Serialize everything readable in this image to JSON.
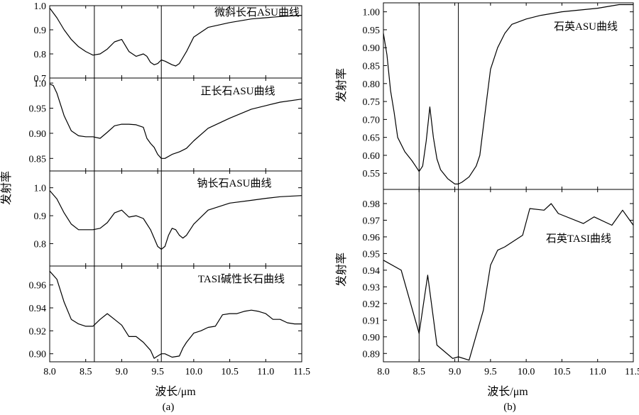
{
  "figure": {
    "panel_a_caption": "(a)",
    "panel_b_caption": "(b)",
    "xlabel": "波长/μm",
    "ylabel": "发射率"
  },
  "chart_data": [
    {
      "type": "line",
      "panel": "a",
      "label": "微斜长石ASU曲线",
      "xlim": [
        8.0,
        11.5
      ],
      "ylim": [
        0.7,
        1.0
      ],
      "x_ticks": [
        "8.0",
        "8.5",
        "9.0",
        "9.5",
        "10.0",
        "10.5",
        "11.0",
        "11.5"
      ],
      "y_ticks": [
        "0.7",
        "0.8",
        "0.9",
        "1.0"
      ],
      "marker_lines_x": [
        8.62,
        9.55
      ],
      "grid": false,
      "x": [
        8.0,
        8.1,
        8.2,
        8.3,
        8.4,
        8.5,
        8.6,
        8.7,
        8.8,
        8.9,
        9.0,
        9.1,
        9.2,
        9.3,
        9.35,
        9.4,
        9.45,
        9.5,
        9.55,
        9.6,
        9.7,
        9.75,
        9.8,
        9.9,
        10.0,
        10.2,
        10.5,
        10.8,
        11.0,
        11.2,
        11.5
      ],
      "y": [
        0.99,
        0.95,
        0.9,
        0.86,
        0.83,
        0.81,
        0.795,
        0.8,
        0.82,
        0.85,
        0.86,
        0.81,
        0.79,
        0.8,
        0.79,
        0.765,
        0.755,
        0.76,
        0.775,
        0.77,
        0.755,
        0.75,
        0.76,
        0.81,
        0.87,
        0.91,
        0.93,
        0.945,
        0.95,
        0.955,
        0.96
      ]
    },
    {
      "type": "line",
      "panel": "a",
      "label": "正长石ASU曲线",
      "xlim": [
        8.0,
        11.5
      ],
      "ylim": [
        0.825,
        1.01
      ],
      "y_ticks": [
        "0.85",
        "0.90",
        "0.95",
        "1.0"
      ],
      "marker_lines_x": [
        8.62,
        9.55
      ],
      "grid": false,
      "x": [
        8.0,
        8.05,
        8.1,
        8.2,
        8.3,
        8.4,
        8.5,
        8.6,
        8.7,
        8.8,
        8.9,
        9.0,
        9.1,
        9.2,
        9.3,
        9.35,
        9.4,
        9.45,
        9.5,
        9.55,
        9.6,
        9.7,
        9.8,
        9.9,
        10.0,
        10.2,
        10.5,
        10.8,
        11.0,
        11.2,
        11.5
      ],
      "y": [
        0.998,
        0.995,
        0.98,
        0.935,
        0.905,
        0.895,
        0.893,
        0.893,
        0.89,
        0.902,
        0.915,
        0.918,
        0.918,
        0.917,
        0.912,
        0.89,
        0.88,
        0.872,
        0.858,
        0.85,
        0.85,
        0.858,
        0.863,
        0.87,
        0.885,
        0.91,
        0.93,
        0.948,
        0.955,
        0.962,
        0.968
      ]
    },
    {
      "type": "line",
      "panel": "a",
      "label": "钠长石ASU曲线",
      "xlim": [
        8.0,
        11.5
      ],
      "ylim": [
        0.72,
        1.06
      ],
      "y_ticks": [
        "0.8",
        "0.9",
        "1.0"
      ],
      "marker_lines_x": [
        8.62,
        9.55
      ],
      "grid": false,
      "x": [
        8.0,
        8.1,
        8.2,
        8.3,
        8.4,
        8.5,
        8.6,
        8.7,
        8.8,
        8.9,
        9.0,
        9.1,
        9.2,
        9.3,
        9.4,
        9.45,
        9.5,
        9.55,
        9.6,
        9.65,
        9.7,
        9.75,
        9.8,
        9.85,
        9.9,
        10.0,
        10.2,
        10.5,
        10.8,
        11.0,
        11.2,
        11.5
      ],
      "y": [
        0.99,
        0.96,
        0.91,
        0.87,
        0.85,
        0.85,
        0.85,
        0.855,
        0.875,
        0.91,
        0.92,
        0.895,
        0.9,
        0.89,
        0.85,
        0.82,
        0.79,
        0.78,
        0.79,
        0.83,
        0.855,
        0.85,
        0.83,
        0.82,
        0.83,
        0.87,
        0.92,
        0.945,
        0.955,
        0.962,
        0.968,
        0.972
      ]
    },
    {
      "type": "line",
      "panel": "a",
      "label": "TASI碱性长石曲线",
      "xlim": [
        8.0,
        11.5
      ],
      "ylim": [
        0.893,
        0.9765
      ],
      "y_ticks": [
        "0.90",
        "0.92",
        "0.94",
        "0.96"
      ],
      "marker_lines_x": [
        8.62,
        9.55
      ],
      "grid": false,
      "x": [
        8.0,
        8.1,
        8.2,
        8.3,
        8.4,
        8.5,
        8.6,
        8.7,
        8.8,
        8.9,
        9.0,
        9.1,
        9.2,
        9.3,
        9.4,
        9.45,
        9.5,
        9.55,
        9.6,
        9.7,
        9.8,
        9.85,
        9.9,
        10.0,
        10.1,
        10.2,
        10.3,
        10.4,
        10.5,
        10.6,
        10.7,
        10.8,
        10.9,
        11.0,
        11.1,
        11.2,
        11.3,
        11.4,
        11.5
      ],
      "y": [
        0.972,
        0.965,
        0.945,
        0.93,
        0.926,
        0.924,
        0.924,
        0.93,
        0.935,
        0.93,
        0.925,
        0.915,
        0.915,
        0.91,
        0.903,
        0.896,
        0.898,
        0.9,
        0.9,
        0.897,
        0.898,
        0.905,
        0.91,
        0.918,
        0.92,
        0.923,
        0.924,
        0.934,
        0.935,
        0.935,
        0.937,
        0.938,
        0.937,
        0.935,
        0.93,
        0.93,
        0.927,
        0.926,
        0.926
      ]
    },
    {
      "type": "line",
      "panel": "b",
      "label": "石英ASU曲线",
      "xlim": [
        8.0,
        11.5
      ],
      "ylim": [
        0.505,
        1.025
      ],
      "y_ticks": [
        "0.55",
        "0.60",
        "0.65",
        "0.70",
        "0.75",
        "0.80",
        "0.85",
        "0.90",
        "0.95",
        "1.00"
      ],
      "marker_lines_x": [
        8.5,
        9.05
      ],
      "grid": false,
      "x": [
        8.0,
        8.05,
        8.1,
        8.15,
        8.2,
        8.3,
        8.4,
        8.45,
        8.5,
        8.55,
        8.6,
        8.65,
        8.7,
        8.75,
        8.8,
        8.9,
        9.0,
        9.05,
        9.1,
        9.2,
        9.3,
        9.35,
        9.4,
        9.45,
        9.5,
        9.6,
        9.7,
        9.8,
        10.0,
        10.2,
        10.5,
        11.0,
        11.3,
        11.5
      ],
      "y": [
        0.94,
        0.88,
        0.78,
        0.72,
        0.65,
        0.61,
        0.585,
        0.57,
        0.555,
        0.57,
        0.64,
        0.735,
        0.65,
        0.59,
        0.56,
        0.535,
        0.52,
        0.52,
        0.525,
        0.54,
        0.57,
        0.6,
        0.68,
        0.76,
        0.84,
        0.9,
        0.94,
        0.965,
        0.98,
        0.99,
        1.0,
        1.01,
        1.02,
        1.02
      ]
    },
    {
      "type": "line",
      "panel": "b",
      "label": "石英TASI曲线",
      "xlim": [
        8.0,
        11.5
      ],
      "ylim": [
        0.885,
        0.9885
      ],
      "y_ticks": [
        "0.89",
        "0.90",
        "0.91",
        "0.92",
        "0.93",
        "0.94",
        "0.95",
        "0.96",
        "0.97",
        "0.98"
      ],
      "marker_lines_x": [
        8.5,
        9.05
      ],
      "grid": false,
      "x": [
        8.0,
        8.25,
        8.5,
        8.62,
        8.75,
        8.97,
        9.05,
        9.2,
        9.4,
        9.5,
        9.6,
        9.7,
        9.95,
        10.05,
        10.25,
        10.35,
        10.45,
        10.8,
        10.95,
        11.2,
        11.35,
        11.5
      ],
      "y": [
        0.946,
        0.94,
        0.902,
        0.937,
        0.895,
        0.887,
        0.888,
        0.886,
        0.916,
        0.943,
        0.952,
        0.954,
        0.961,
        0.977,
        0.976,
        0.98,
        0.974,
        0.968,
        0.972,
        0.967,
        0.976,
        0.967
      ]
    }
  ]
}
